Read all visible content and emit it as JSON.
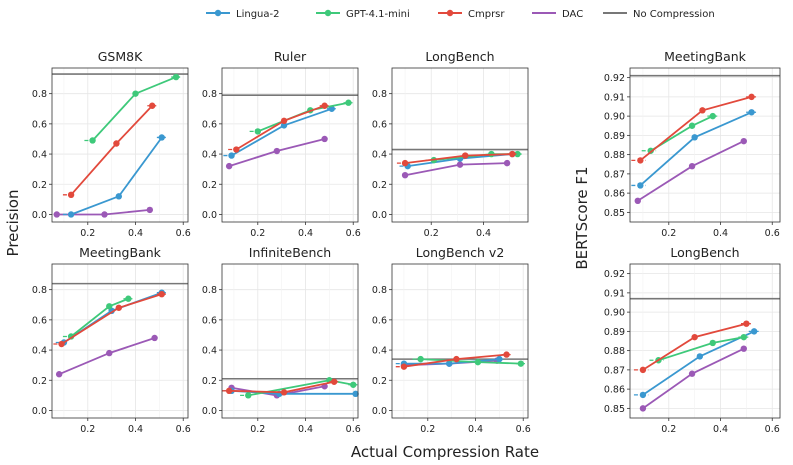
{
  "legend": {
    "items": [
      {
        "name": "Lingua-2",
        "color": "#3a98d0",
        "kind": "line-marker"
      },
      {
        "name": "GPT-4.1-mini",
        "color": "#3ec97a",
        "kind": "line-marker"
      },
      {
        "name": "Cmprsr",
        "color": "#e2493c",
        "kind": "line-marker"
      },
      {
        "name": "DAC",
        "color": "#9b59b6",
        "kind": "line"
      },
      {
        "name": "No Compression",
        "color": "#777777",
        "kind": "line"
      }
    ]
  },
  "labels": {
    "xlabel": "Actual Compression Rate",
    "ylabel_left": "Precision",
    "ylabel_right": "BERTScore F1"
  },
  "chart_data": [
    {
      "type": "line",
      "title": "GSM8K",
      "xlim": [
        0.05,
        0.62
      ],
      "ylim": [
        -0.05,
        0.97
      ],
      "xticks": [
        0.2,
        0.4,
        0.6
      ],
      "yticks": [
        0.0,
        0.2,
        0.4,
        0.6,
        0.8
      ],
      "ytick_labels": [
        "0.0",
        "0.2",
        "0.4",
        "0.6",
        "0.8"
      ],
      "show_yticklabels": true,
      "show_xticklabels": true,
      "baseline": 0.93,
      "series": [
        {
          "name": "Lingua-2",
          "x": [
            0.13,
            0.33,
            0.51
          ],
          "y": [
            0.0,
            0.12,
            0.51
          ]
        },
        {
          "name": "GPT-4.1-mini",
          "x": [
            0.22,
            0.4,
            0.57
          ],
          "y": [
            0.49,
            0.8,
            0.91
          ]
        },
        {
          "name": "Cmprsr",
          "x": [
            0.13,
            0.32,
            0.47
          ],
          "y": [
            0.13,
            0.47,
            0.72
          ]
        },
        {
          "name": "DAC",
          "x": [
            0.07,
            0.27,
            0.46
          ],
          "y": [
            0.0,
            0.0,
            0.03
          ]
        }
      ]
    },
    {
      "type": "line",
      "title": "Ruler",
      "xlim": [
        0.05,
        0.62
      ],
      "ylim": [
        -0.05,
        0.97
      ],
      "xticks": [
        0.2,
        0.4,
        0.6
      ],
      "yticks": [
        0.0,
        0.2,
        0.4,
        0.6,
        0.8
      ],
      "ytick_labels": [
        "0.0",
        "0.2",
        "0.4",
        "0.6",
        "0.8"
      ],
      "show_yticklabels": true,
      "show_xticklabels": true,
      "baseline": 0.79,
      "series": [
        {
          "name": "Lingua-2",
          "x": [
            0.09,
            0.31,
            0.51
          ],
          "y": [
            0.39,
            0.59,
            0.7
          ]
        },
        {
          "name": "GPT-4.1-mini",
          "x": [
            0.2,
            0.42,
            0.58
          ],
          "y": [
            0.55,
            0.69,
            0.74
          ]
        },
        {
          "name": "Cmprsr",
          "x": [
            0.11,
            0.31,
            0.48
          ],
          "y": [
            0.43,
            0.62,
            0.72
          ]
        },
        {
          "name": "DAC",
          "x": [
            0.08,
            0.28,
            0.48
          ],
          "y": [
            0.32,
            0.42,
            0.5
          ]
        }
      ]
    },
    {
      "type": "line",
      "title": "LongBench",
      "xlim": [
        0.05,
        0.57
      ],
      "ylim": [
        -0.05,
        0.97
      ],
      "xticks": [
        0.2,
        0.4
      ],
      "yticks": [
        0.0,
        0.2,
        0.4,
        0.6,
        0.8
      ],
      "ytick_labels": [
        "0.0",
        "0.2",
        "0.4",
        "0.6",
        "0.8"
      ],
      "show_yticklabels": true,
      "show_xticklabels": true,
      "baseline": 0.43,
      "series": [
        {
          "name": "Lingua-2",
          "x": [
            0.11,
            0.31,
            0.51
          ],
          "y": [
            0.32,
            0.37,
            0.4
          ]
        },
        {
          "name": "GPT-4.1-mini",
          "x": [
            0.21,
            0.43,
            0.53
          ],
          "y": [
            0.36,
            0.4,
            0.4
          ]
        },
        {
          "name": "Cmprsr",
          "x": [
            0.1,
            0.33,
            0.51
          ],
          "y": [
            0.34,
            0.39,
            0.4
          ]
        },
        {
          "name": "DAC",
          "x": [
            0.1,
            0.31,
            0.49
          ],
          "y": [
            0.26,
            0.33,
            0.34
          ]
        }
      ]
    },
    {
      "type": "line",
      "title": "MeetingBank",
      "xlim": [
        0.05,
        0.62
      ],
      "ylim": [
        -0.05,
        0.97
      ],
      "xticks": [
        0.2,
        0.4,
        0.6
      ],
      "yticks": [
        0.0,
        0.2,
        0.4,
        0.6,
        0.8
      ],
      "ytick_labels": [
        "0.0",
        "0.2",
        "0.4",
        "0.6",
        "0.8"
      ],
      "show_yticklabels": true,
      "show_xticklabels": true,
      "baseline": 0.84,
      "series": [
        {
          "name": "Lingua-2",
          "x": [
            0.1,
            0.3,
            0.51
          ],
          "y": [
            0.45,
            0.66,
            0.78
          ]
        },
        {
          "name": "GPT-4.1-mini",
          "x": [
            0.13,
            0.29,
            0.37
          ],
          "y": [
            0.49,
            0.69,
            0.74
          ]
        },
        {
          "name": "Cmprsr",
          "x": [
            0.09,
            0.33,
            0.51
          ],
          "y": [
            0.44,
            0.68,
            0.77
          ]
        },
        {
          "name": "DAC",
          "x": [
            0.08,
            0.29,
            0.48
          ],
          "y": [
            0.24,
            0.38,
            0.48
          ]
        }
      ]
    },
    {
      "type": "line",
      "title": "InfiniteBench",
      "xlim": [
        0.05,
        0.62
      ],
      "ylim": [
        -0.05,
        0.97
      ],
      "xticks": [
        0.2,
        0.4,
        0.6
      ],
      "yticks": [
        0.0,
        0.2,
        0.4,
        0.6,
        0.8
      ],
      "ytick_labels": [
        "0.0",
        "0.2",
        "0.4",
        "0.6",
        "0.8"
      ],
      "show_yticklabels": true,
      "show_xticklabels": true,
      "baseline": 0.21,
      "series": [
        {
          "name": "Lingua-2",
          "x": [
            0.09,
            0.29,
            0.61
          ],
          "y": [
            0.13,
            0.11,
            0.11
          ]
        },
        {
          "name": "GPT-4.1-mini",
          "x": [
            0.16,
            0.5,
            0.6
          ],
          "y": [
            0.1,
            0.2,
            0.17
          ]
        },
        {
          "name": "Cmprsr",
          "x": [
            0.08,
            0.31,
            0.52
          ],
          "y": [
            0.13,
            0.12,
            0.19
          ]
        },
        {
          "name": "DAC",
          "x": [
            0.09,
            0.28,
            0.48
          ],
          "y": [
            0.15,
            0.1,
            0.16
          ]
        }
      ]
    },
    {
      "type": "line",
      "title": "LongBench v2",
      "xlim": [
        0.05,
        0.62
      ],
      "ylim": [
        -0.05,
        0.97
      ],
      "xticks": [
        0.2,
        0.4,
        0.6
      ],
      "yticks": [
        0.0,
        0.2,
        0.4,
        0.6,
        0.8
      ],
      "ytick_labels": [
        "0.0",
        "0.2",
        "0.4",
        "0.6",
        "0.8"
      ],
      "show_yticklabels": true,
      "show_xticklabels": true,
      "baseline": 0.34,
      "series": [
        {
          "name": "Lingua-2",
          "x": [
            0.1,
            0.29,
            0.5
          ],
          "y": [
            0.31,
            0.31,
            0.34
          ]
        },
        {
          "name": "GPT-4.1-mini",
          "x": [
            0.17,
            0.41,
            0.59
          ],
          "y": [
            0.34,
            0.32,
            0.31
          ]
        },
        {
          "name": "Cmprsr",
          "x": [
            0.1,
            0.32,
            0.53
          ],
          "y": [
            0.29,
            0.34,
            0.37
          ]
        },
        {
          "name": "DAC",
          "x": [
            0.1,
            0.29,
            0.49
          ],
          "y": [
            0.3,
            0.31,
            0.33
          ]
        }
      ]
    },
    {
      "type": "line",
      "title": "MeetingBank",
      "xlim": [
        0.05,
        0.63
      ],
      "ylim": [
        0.845,
        0.925
      ],
      "xticks": [
        0.2,
        0.4,
        0.6
      ],
      "yticks": [
        0.85,
        0.86,
        0.87,
        0.88,
        0.89,
        0.9,
        0.91,
        0.92
      ],
      "ytick_labels": [
        "0.85",
        "0.86",
        "0.87",
        "0.88",
        "0.89",
        "0.90",
        "0.91",
        "0.92"
      ],
      "show_yticklabels": true,
      "show_xticklabels": true,
      "baseline": 0.921,
      "series": [
        {
          "name": "Lingua-2",
          "x": [
            0.09,
            0.3,
            0.52
          ],
          "y": [
            0.864,
            0.889,
            0.902
          ]
        },
        {
          "name": "GPT-4.1-mini",
          "x": [
            0.13,
            0.29,
            0.37
          ],
          "y": [
            0.882,
            0.895,
            0.9
          ]
        },
        {
          "name": "Cmprsr",
          "x": [
            0.09,
            0.33,
            0.52
          ],
          "y": [
            0.877,
            0.903,
            0.91
          ]
        },
        {
          "name": "DAC",
          "x": [
            0.08,
            0.29,
            0.49
          ],
          "y": [
            0.856,
            0.874,
            0.887
          ]
        }
      ]
    },
    {
      "type": "line",
      "title": "LongBench",
      "xlim": [
        0.05,
        0.63
      ],
      "ylim": [
        0.845,
        0.925
      ],
      "xticks": [
        0.2,
        0.4,
        0.6
      ],
      "yticks": [
        0.85,
        0.86,
        0.87,
        0.88,
        0.89,
        0.9,
        0.91,
        0.92
      ],
      "ytick_labels": [
        "0.85",
        "0.86",
        "0.87",
        "0.88",
        "0.89",
        "0.90",
        "0.91",
        "0.92"
      ],
      "show_yticklabels": true,
      "show_xticklabels": true,
      "baseline": 0.907,
      "series": [
        {
          "name": "Lingua-2",
          "x": [
            0.1,
            0.32,
            0.53
          ],
          "y": [
            0.857,
            0.877,
            0.89
          ]
        },
        {
          "name": "GPT-4.1-mini",
          "x": [
            0.16,
            0.37,
            0.49
          ],
          "y": [
            0.875,
            0.884,
            0.887
          ]
        },
        {
          "name": "Cmprsr",
          "x": [
            0.1,
            0.3,
            0.5
          ],
          "y": [
            0.87,
            0.887,
            0.894
          ]
        },
        {
          "name": "DAC",
          "x": [
            0.1,
            0.29,
            0.49
          ],
          "y": [
            0.85,
            0.868,
            0.881
          ]
        }
      ]
    }
  ]
}
